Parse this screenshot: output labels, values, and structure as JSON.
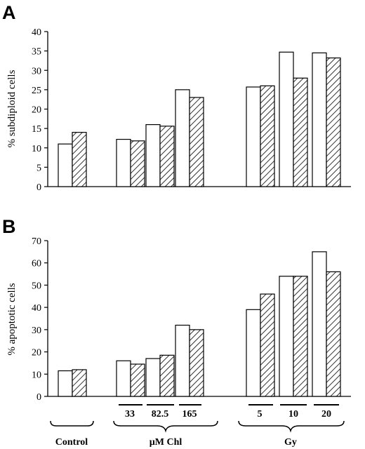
{
  "figure": {
    "panels": [
      "A",
      "B"
    ]
  },
  "chart_data": [
    {
      "panel": "A",
      "type": "bar",
      "ylabel": "% subdiploid cells",
      "xlabel": "",
      "ylim": [
        0,
        40
      ],
      "yticks": [
        0,
        5,
        10,
        15,
        20,
        25,
        30,
        35,
        40
      ],
      "grid": false,
      "legend": "none",
      "categories": [
        "Control",
        "33",
        "82.5",
        "165",
        "5",
        "10",
        "20"
      ],
      "series": [
        {
          "fill": "open",
          "values": [
            11,
            12.2,
            16,
            25,
            25.7,
            34.7,
            34.5
          ]
        },
        {
          "fill": "hatched",
          "values": [
            14,
            11.8,
            15.6,
            23,
            26,
            28,
            33.2
          ]
        }
      ]
    },
    {
      "panel": "B",
      "type": "bar",
      "ylabel": "% apoptotic cells",
      "xlabel": "",
      "ylim": [
        0,
        70
      ],
      "yticks": [
        0,
        10,
        20,
        30,
        40,
        50,
        60,
        70
      ],
      "grid": false,
      "legend": "none",
      "categories": [
        "Control",
        "33",
        "82.5",
        "165",
        "5",
        "10",
        "20"
      ],
      "series": [
        {
          "fill": "open",
          "values": [
            11.5,
            16,
            17,
            32,
            39,
            54,
            65
          ]
        },
        {
          "fill": "hatched",
          "values": [
            12,
            14.5,
            18.5,
            30,
            46,
            54,
            56
          ]
        }
      ]
    }
  ],
  "groups": [
    {
      "label": "Control",
      "doses": []
    },
    {
      "label": "µM Chl",
      "doses": [
        "33",
        "82.5",
        "165"
      ]
    },
    {
      "label": "Gy",
      "doses": [
        "5",
        "10",
        "20"
      ]
    }
  ]
}
